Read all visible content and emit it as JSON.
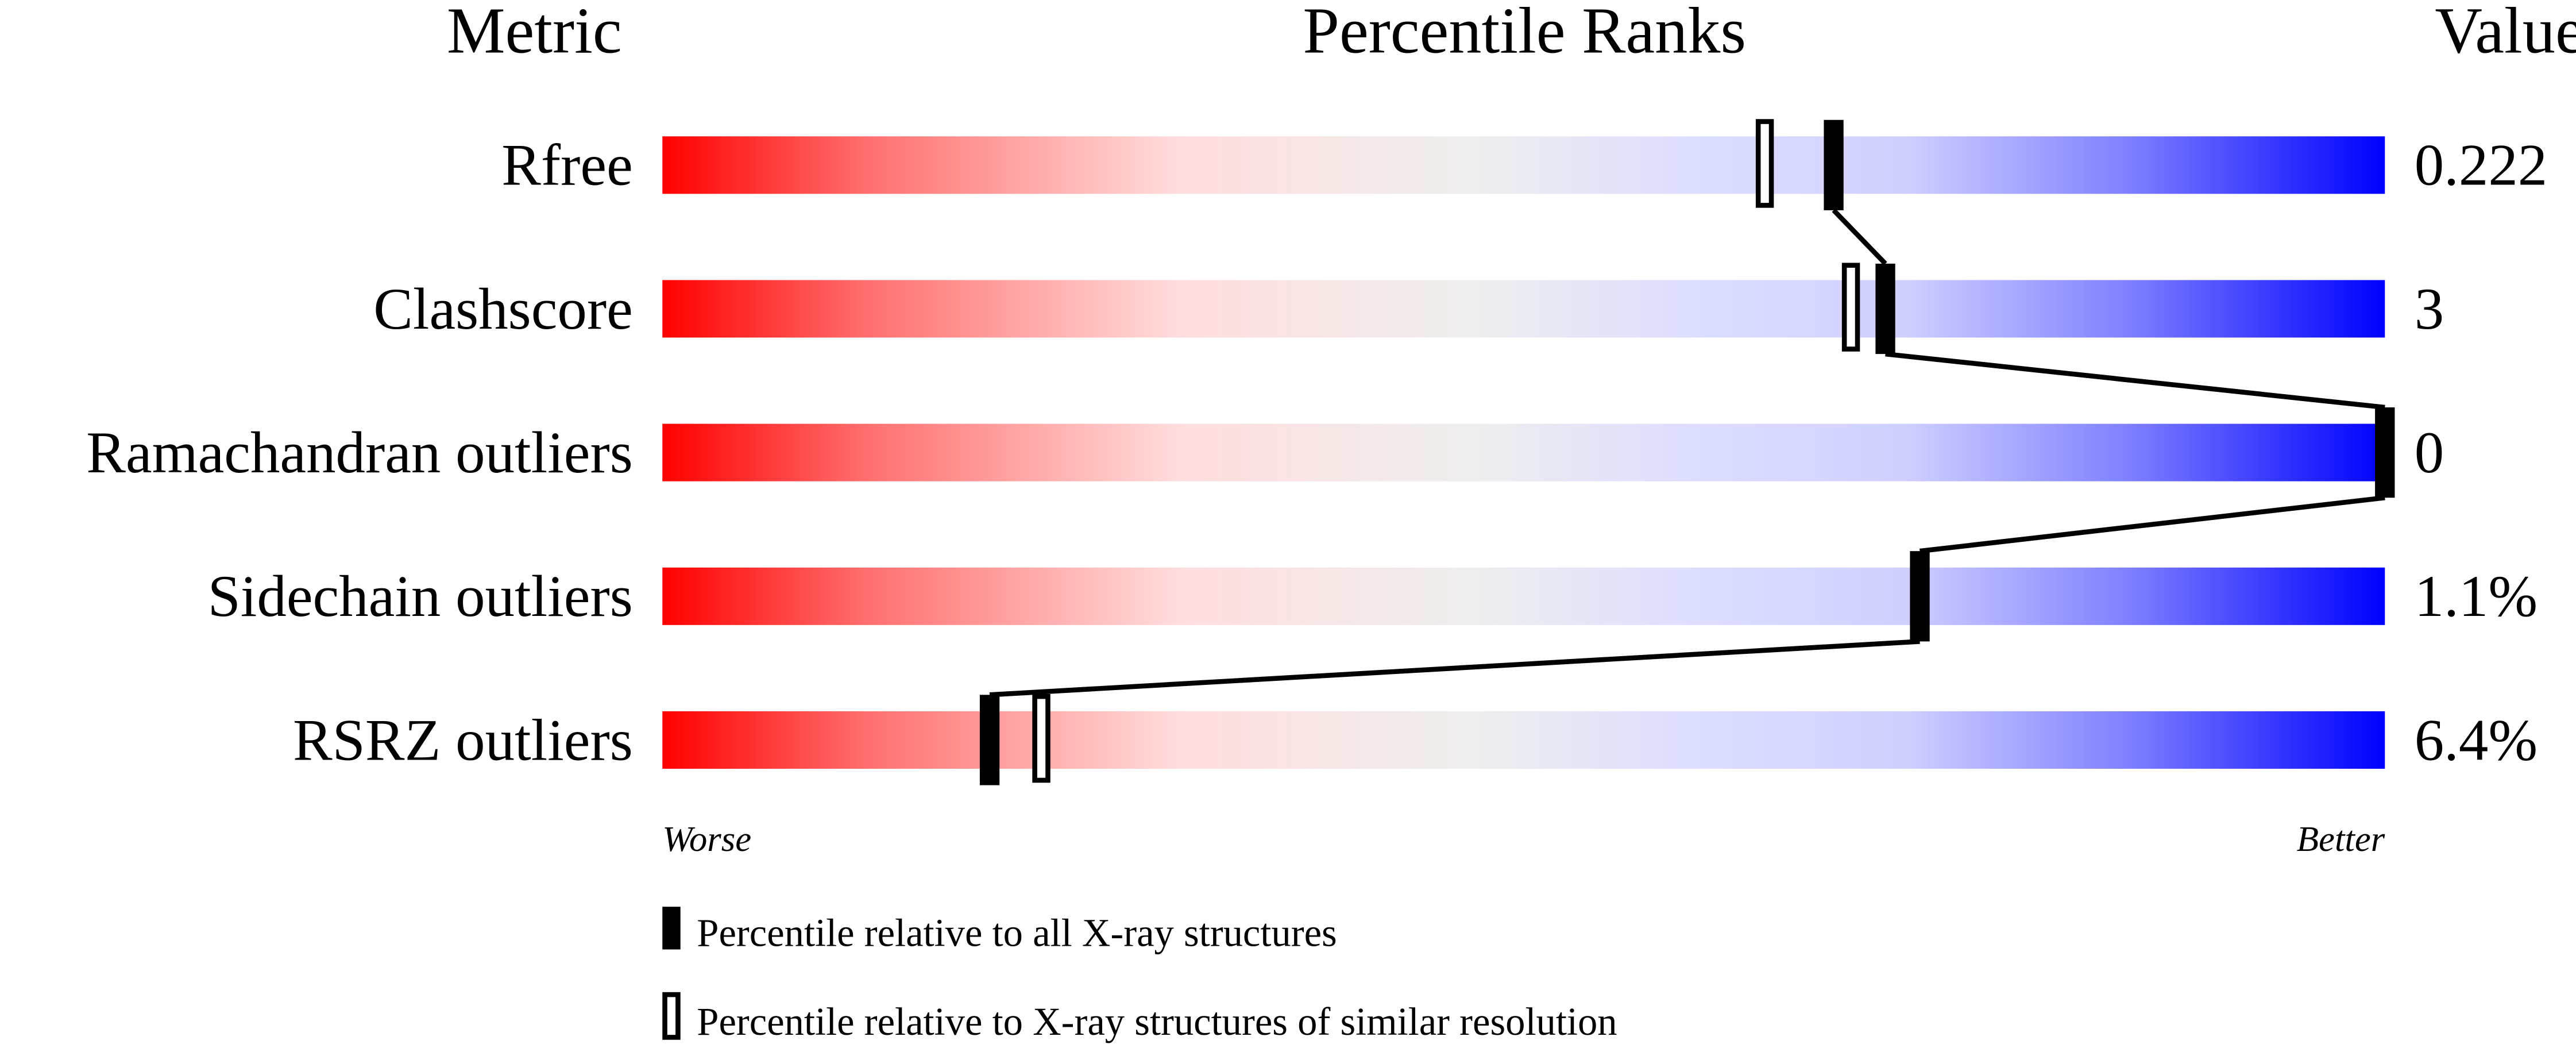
{
  "chart_data": {
    "type": "percentile-slider",
    "headers": {
      "metric": "Metric",
      "percentile": "Percentile Ranks",
      "value": "Value"
    },
    "xlim": [
      0,
      100
    ],
    "axis_ends": {
      "left": "Worse",
      "right": "Better"
    },
    "gradient_colors": {
      "worse": "#ff0000",
      "middle": "#eeeeee",
      "better": "#0000ff"
    },
    "metrics": [
      {
        "name": "Rfree",
        "value": "0.222",
        "percentile_all": 68,
        "percentile_similar": 64
      },
      {
        "name": "Clashscore",
        "value": "3",
        "percentile_all": 71,
        "percentile_similar": 69
      },
      {
        "name": "Ramachandran outliers",
        "value": "0",
        "percentile_all": 100,
        "percentile_similar": null
      },
      {
        "name": "Sidechain outliers",
        "value": "1.1%",
        "percentile_all": 73,
        "percentile_similar": null
      },
      {
        "name": "RSRZ outliers",
        "value": "6.4%",
        "percentile_all": 19,
        "percentile_similar": 22
      }
    ],
    "legend": [
      {
        "marker": "filled",
        "label": "Percentile relative to all X-ray structures"
      },
      {
        "marker": "open",
        "label": "Percentile relative to X-ray structures of similar resolution"
      }
    ]
  }
}
